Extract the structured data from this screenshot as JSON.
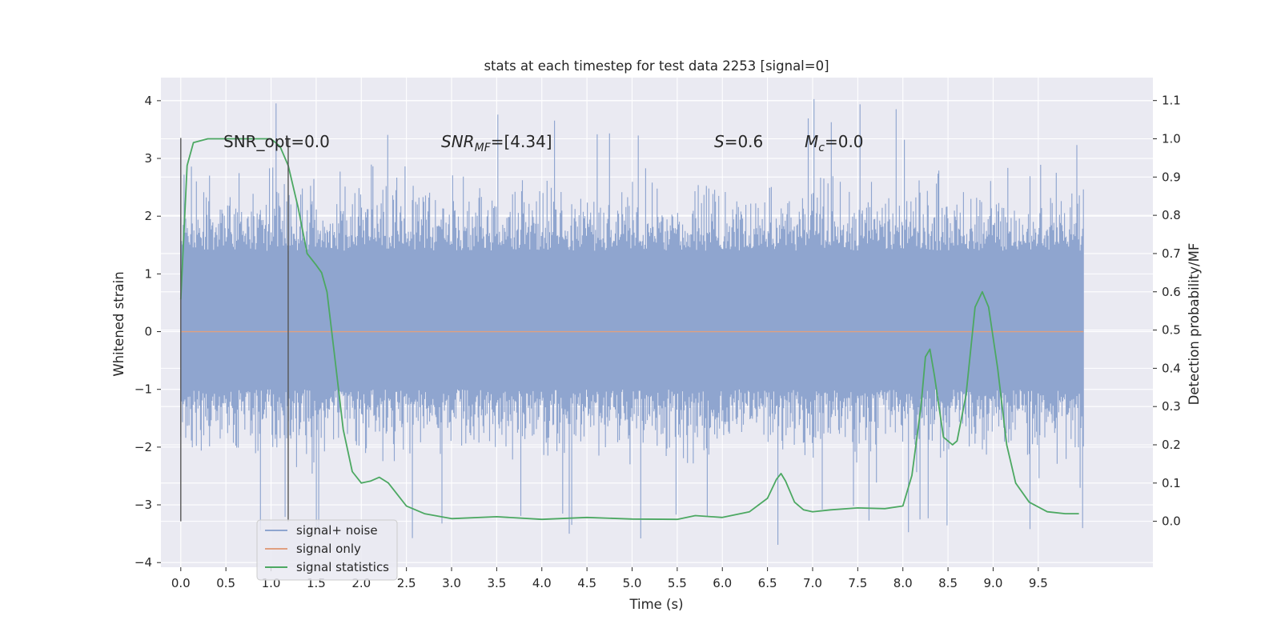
{
  "chart_data": {
    "type": "line",
    "title": "stats at each timestep for test data 2253 [signal=0]",
    "xlabel": "Time (s)",
    "ylabel": "Whitened strain",
    "y2label": "Detection probability/MF",
    "xlim": [
      -0.22,
      10.77
    ],
    "ylim": [
      -4.08,
      4.4
    ],
    "y2lim": [
      -0.12,
      1.16
    ],
    "x_ticks": [
      "0.0",
      "0.5",
      "1.0",
      "1.5",
      "2.0",
      "2.5",
      "3.0",
      "3.5",
      "4.0",
      "4.5",
      "5.0",
      "5.5",
      "6.0",
      "6.5",
      "7.0",
      "7.5",
      "8.0",
      "8.5",
      "9.0",
      "9.5"
    ],
    "y_ticks": [
      "4",
      "3",
      "2",
      "1",
      "0",
      "−1",
      "−2",
      "−3",
      "−4"
    ],
    "y2_ticks": [
      "1.1",
      "1.0",
      "0.9",
      "0.8",
      "0.7",
      "0.6",
      "0.5",
      "0.4",
      "0.3",
      "0.2",
      "0.1",
      "0.0"
    ],
    "grid": true,
    "legend_position": "lower-left",
    "annotations": {
      "snr_opt": "SNR_opt=0.0",
      "snr_mf_italic": "SNR",
      "snr_mf_sub": "MF",
      "snr_mf_rest": "=[4.34]",
      "s_italic": "S",
      "s_rest": "=0.6",
      "mc_italic": "M",
      "mc_sub": "c",
      "mc_rest": "=0.0"
    },
    "vertical_lines_x": [
      0.0,
      1.19
    ],
    "series": [
      {
        "name": "signal+ noise",
        "color": "#8fa5cf",
        "description_values": {
          "x_start": 0.0,
          "x_end": 10.0,
          "dense_band": [
            -1.0,
            1.4
          ],
          "envelope": [
            -3.7,
            4.05
          ]
        }
      },
      {
        "name": "signal only",
        "color": "#e0a080",
        "x": [
          0.0,
          10.0
        ],
        "y": [
          0.0,
          0.0
        ]
      },
      {
        "name": "signal statistics",
        "color": "#4ca862",
        "axis": "right",
        "x": [
          0.0,
          0.07,
          0.14,
          0.3,
          0.5,
          0.7,
          0.9,
          1.0,
          1.1,
          1.19,
          1.3,
          1.4,
          1.5,
          1.56,
          1.62,
          1.7,
          1.8,
          1.9,
          2.0,
          2.1,
          2.2,
          2.3,
          2.4,
          2.5,
          2.7,
          3.0,
          3.5,
          4.0,
          4.5,
          5.0,
          5.5,
          5.7,
          6.0,
          6.3,
          6.5,
          6.6,
          6.65,
          6.7,
          6.8,
          6.9,
          7.0,
          7.2,
          7.5,
          7.8,
          8.0,
          8.1,
          8.2,
          8.25,
          8.3,
          8.35,
          8.45,
          8.55,
          8.6,
          8.7,
          8.8,
          8.88,
          8.95,
          9.05,
          9.15,
          9.25,
          9.4,
          9.6,
          9.8,
          9.95
        ],
        "y": [
          0.58,
          0.93,
          0.99,
          1.0,
          1.0,
          1.0,
          1.0,
          1.0,
          0.98,
          0.93,
          0.82,
          0.7,
          0.67,
          0.65,
          0.6,
          0.44,
          0.24,
          0.13,
          0.1,
          0.105,
          0.115,
          0.1,
          0.07,
          0.04,
          0.02,
          0.007,
          0.012,
          0.005,
          0.01,
          0.006,
          0.005,
          0.015,
          0.01,
          0.025,
          0.06,
          0.11,
          0.125,
          0.105,
          0.05,
          0.03,
          0.025,
          0.03,
          0.035,
          0.033,
          0.04,
          0.12,
          0.3,
          0.43,
          0.45,
          0.38,
          0.22,
          0.2,
          0.21,
          0.33,
          0.56,
          0.6,
          0.56,
          0.4,
          0.2,
          0.1,
          0.05,
          0.025,
          0.02,
          0.02
        ]
      }
    ]
  }
}
